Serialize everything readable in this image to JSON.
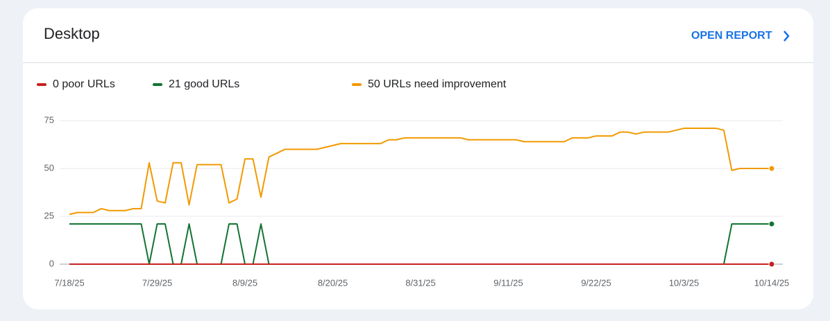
{
  "header": {
    "title": "Desktop",
    "action": "OPEN REPORT"
  },
  "chart_data": {
    "type": "line",
    "categories": [
      "7/18/25",
      "7/19/25",
      "7/20/25",
      "7/21/25",
      "7/22/25",
      "7/23/25",
      "7/24/25",
      "7/25/25",
      "7/26/25",
      "7/27/25",
      "7/28/25",
      "7/29/25",
      "7/30/25",
      "7/31/25",
      "8/1/25",
      "8/2/25",
      "8/3/25",
      "8/4/25",
      "8/5/25",
      "8/6/25",
      "8/7/25",
      "8/8/25",
      "8/9/25",
      "8/10/25",
      "8/11/25",
      "8/12/25",
      "8/13/25",
      "8/14/25",
      "8/15/25",
      "8/16/25",
      "8/17/25",
      "8/18/25",
      "8/19/25",
      "8/20/25",
      "8/21/25",
      "8/22/25",
      "8/23/25",
      "8/24/25",
      "8/25/25",
      "8/26/25",
      "8/27/25",
      "8/28/25",
      "8/29/25",
      "8/30/25",
      "8/31/25",
      "9/1/25",
      "9/2/25",
      "9/3/25",
      "9/4/25",
      "9/5/25",
      "9/6/25",
      "9/7/25",
      "9/8/25",
      "9/9/25",
      "9/10/25",
      "9/11/25",
      "9/12/25",
      "9/13/25",
      "9/14/25",
      "9/15/25",
      "9/16/25",
      "9/17/25",
      "9/18/25",
      "9/19/25",
      "9/20/25",
      "9/21/25",
      "9/22/25",
      "9/23/25",
      "9/24/25",
      "9/25/25",
      "9/26/25",
      "9/27/25",
      "9/28/25",
      "9/29/25",
      "9/30/25",
      "10/1/25",
      "10/2/25",
      "10/3/25",
      "10/4/25",
      "10/5/25",
      "10/6/25",
      "10/7/25",
      "10/8/25",
      "10/9/25",
      "10/10/25",
      "10/11/25",
      "10/12/25",
      "10/13/25",
      "10/14/25"
    ],
    "xticks": [
      "7/18/25",
      "7/29/25",
      "8/9/25",
      "8/20/25",
      "8/31/25",
      "9/11/25",
      "9/22/25",
      "10/3/25",
      "10/14/25"
    ],
    "ylim": [
      0,
      75
    ],
    "yticks": [
      0,
      25,
      50,
      75
    ],
    "grid": true,
    "legend": "top-left",
    "series": [
      {
        "name": "50 URLs need improvement",
        "color": "#f29900",
        "values": [
          26,
          27,
          27,
          27,
          29,
          28,
          28,
          28,
          29,
          29,
          53,
          33,
          32,
          53,
          53,
          31,
          52,
          52,
          52,
          52,
          32,
          34,
          55,
          55,
          35,
          56,
          58,
          60,
          60,
          60,
          60,
          60,
          61,
          62,
          63,
          63,
          63,
          63,
          63,
          63,
          65,
          65,
          66,
          66,
          66,
          66,
          66,
          66,
          66,
          66,
          65,
          65,
          65,
          65,
          65,
          65,
          65,
          64,
          64,
          64,
          64,
          64,
          64,
          66,
          66,
          66,
          67,
          67,
          67,
          69,
          69,
          68,
          69,
          69,
          69,
          69,
          70,
          71,
          71,
          71,
          71,
          71,
          70,
          49,
          50,
          50,
          50,
          50,
          50
        ]
      },
      {
        "name": "21 good URLs",
        "color": "#137333",
        "values": [
          21,
          21,
          21,
          21,
          21,
          21,
          21,
          21,
          21,
          21,
          0,
          21,
          21,
          0,
          0,
          21,
          0,
          0,
          0,
          0,
          21,
          21,
          0,
          0,
          21,
          0,
          0,
          0,
          0,
          0,
          0,
          0,
          0,
          0,
          0,
          0,
          0,
          0,
          0,
          0,
          0,
          0,
          0,
          0,
          0,
          0,
          0,
          0,
          0,
          0,
          0,
          0,
          0,
          0,
          0,
          0,
          0,
          0,
          0,
          0,
          0,
          0,
          0,
          0,
          0,
          0,
          0,
          0,
          0,
          0,
          0,
          0,
          0,
          0,
          0,
          0,
          0,
          0,
          0,
          0,
          0,
          0,
          0,
          21,
          21,
          21,
          21,
          21,
          21
        ]
      },
      {
        "name": "0 poor URLs",
        "color": "#c5221f",
        "values": [
          0,
          0,
          0,
          0,
          0,
          0,
          0,
          0,
          0,
          0,
          0,
          0,
          0,
          0,
          0,
          0,
          0,
          0,
          0,
          0,
          0,
          0,
          0,
          0,
          0,
          0,
          0,
          0,
          0,
          0,
          0,
          0,
          0,
          0,
          0,
          0,
          0,
          0,
          0,
          0,
          0,
          0,
          0,
          0,
          0,
          0,
          0,
          0,
          0,
          0,
          0,
          0,
          0,
          0,
          0,
          0,
          0,
          0,
          0,
          0,
          0,
          0,
          0,
          0,
          0,
          0,
          0,
          0,
          0,
          0,
          0,
          0,
          0,
          0,
          0,
          0,
          0,
          0,
          0,
          0,
          0,
          0,
          0,
          0,
          0,
          0,
          0,
          0,
          0
        ]
      }
    ]
  }
}
